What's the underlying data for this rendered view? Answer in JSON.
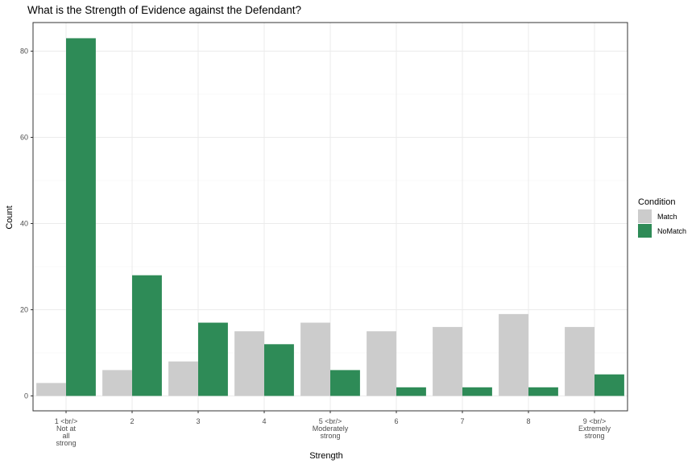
{
  "chart_data": {
    "type": "bar",
    "title": "What is the Strength of Evidence against the Defendant?",
    "xlabel": "Strength",
    "ylabel": "Count",
    "ylim": [
      0,
      85
    ],
    "yticks": [
      0,
      20,
      40,
      60,
      80
    ],
    "grid": true,
    "legend_position": "right",
    "legend_title": "Condition",
    "categories": [
      "1 <br/> Not at all strong",
      "2",
      "3",
      "4",
      "5 <br/> Moderately strong",
      "6",
      "7",
      "8",
      "9 <br/> Extremely strong"
    ],
    "category_lines": [
      [
        "1 <br/>",
        "Not at",
        "all",
        "strong"
      ],
      [
        "2"
      ],
      [
        "3"
      ],
      [
        "4"
      ],
      [
        "5 <br/>",
        "Moderately",
        "strong"
      ],
      [
        "6"
      ],
      [
        "7"
      ],
      [
        "8"
      ],
      [
        "9 <br/>",
        "Extremely",
        "strong"
      ]
    ],
    "series": [
      {
        "name": "Match",
        "color": "#cccccc",
        "values": [
          3,
          6,
          8,
          15,
          17,
          15,
          16,
          19,
          16
        ]
      },
      {
        "name": "NoMatch",
        "color": "#2e8b57",
        "values": [
          83,
          28,
          17,
          12,
          6,
          2,
          2,
          2,
          5
        ]
      }
    ]
  }
}
